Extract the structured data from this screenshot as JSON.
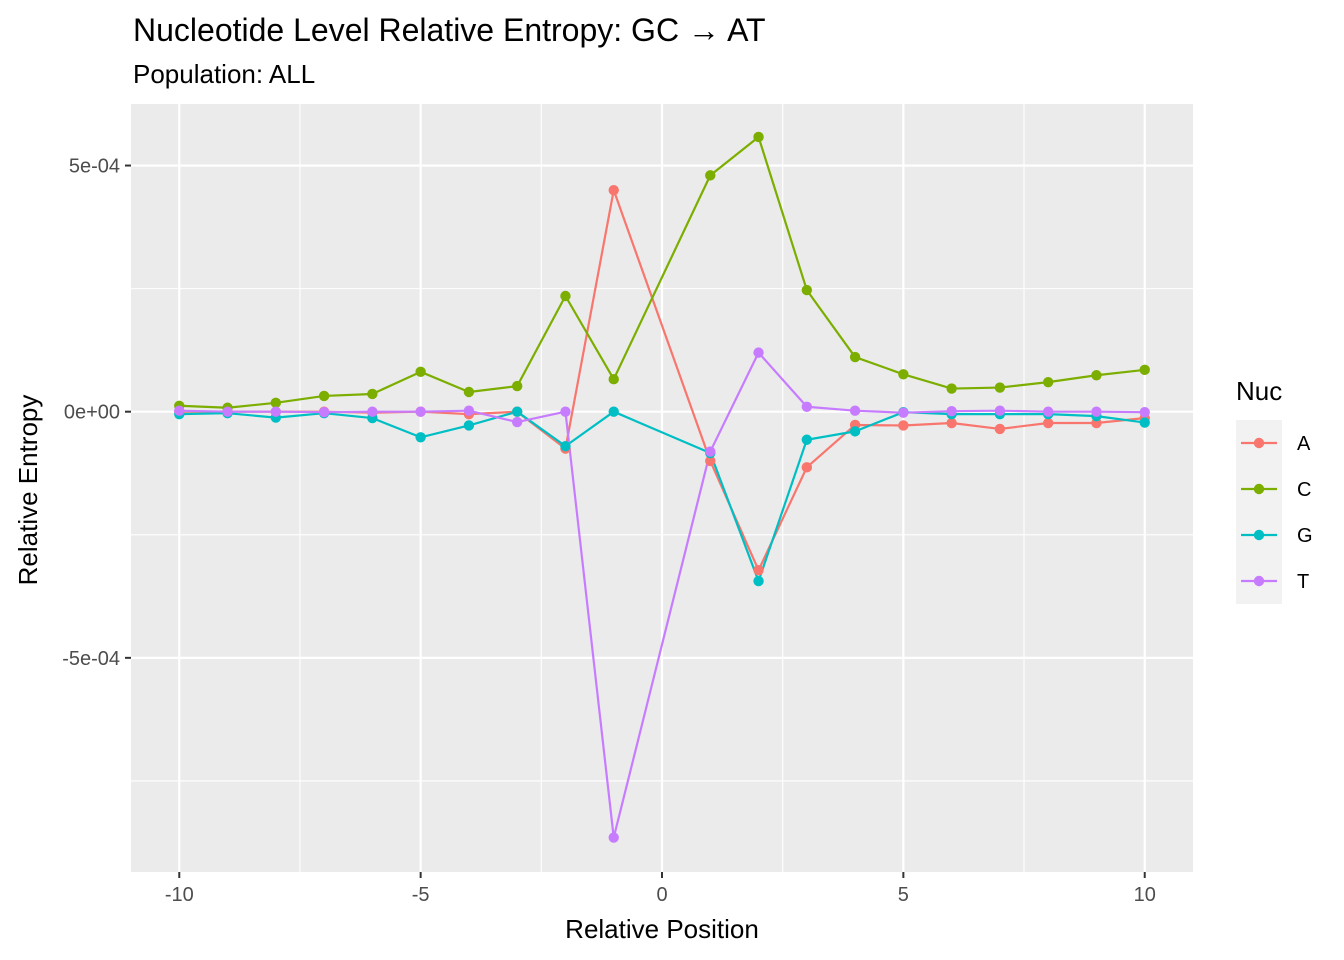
{
  "chart_data": {
    "type": "line",
    "title": "Nucleotide Level Relative Entropy: GC → AT",
    "subtitle": "Population: ALL",
    "xlabel": "Relative Position",
    "ylabel": "Relative Entropy",
    "xlim": [
      -11,
      11
    ],
    "ylim": [
      -0.000935,
      0.000625
    ],
    "x_ticks": [
      -10,
      -5,
      0,
      5,
      10
    ],
    "x_tick_labels": [
      "-10",
      "-5",
      "0",
      "5",
      "10"
    ],
    "y_ticks": [
      0.0005,
      0,
      -0.0005
    ],
    "y_tick_labels": [
      "5e-04",
      "0e+00",
      "-5e-04"
    ],
    "grid": true,
    "legend": {
      "title": "Nuc",
      "position": "right"
    },
    "x": [
      -10,
      -9,
      -8,
      -7,
      -6,
      -5,
      -4,
      -3,
      -2,
      -1,
      1,
      2,
      3,
      4,
      5,
      6,
      7,
      8,
      9,
      10
    ],
    "series": [
      {
        "name": "A",
        "color": "#F8766D",
        "values": [
          0.0,
          0.0,
          0.0,
          0.0,
          -2e-06,
          0.0,
          -5e-06,
          0.0,
          -7.5e-05,
          0.00045,
          -0.0001,
          -0.000322,
          -0.000113,
          -2.7e-05,
          -2.8e-05,
          -2.3e-05,
          -3.5e-05,
          -2.3e-05,
          -2.3e-05,
          -1.3e-05
        ]
      },
      {
        "name": "C",
        "color": "#7CAE00",
        "values": [
          1.2e-05,
          8e-06,
          1.8e-05,
          3.2e-05,
          3.6e-05,
          8.1e-05,
          4e-05,
          5.2e-05,
          0.000235,
          6.6e-05,
          0.00048,
          0.000558,
          0.000247,
          0.000111,
          7.6e-05,
          4.7e-05,
          4.9e-05,
          6e-05,
          7.4e-05,
          8.5e-05
        ]
      },
      {
        "name": "G",
        "color": "#00BFC4",
        "values": [
          -5e-06,
          -3e-06,
          -1.2e-05,
          -3e-06,
          -1.3e-05,
          -5.2e-05,
          -2.8e-05,
          0.0,
          -7e-05,
          0.0,
          -8.4e-05,
          -0.000344,
          -5.7e-05,
          -4e-05,
          -1e-06,
          -5e-06,
          -5e-06,
          -5e-06,
          -9e-06,
          -2.2e-05
        ]
      },
      {
        "name": "T",
        "color": "#C77CFF",
        "values": [
          2e-06,
          0.0,
          0.0,
          -1e-06,
          0.0,
          0.0,
          2e-06,
          -2.1e-05,
          0.0,
          -0.000865,
          -8.1e-05,
          0.00012,
          1e-05,
          2e-06,
          -2e-06,
          1e-06,
          2e-06,
          0.0,
          0.0,
          -1e-06
        ]
      }
    ]
  }
}
